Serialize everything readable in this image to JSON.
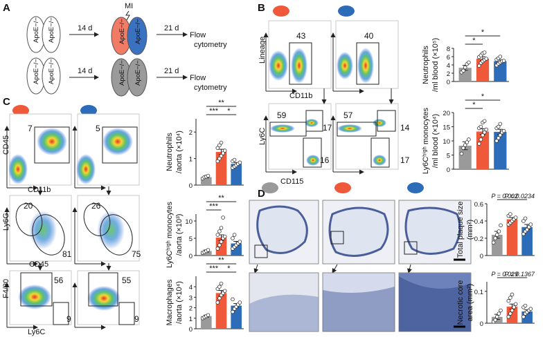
{
  "panel_labels": [
    "A",
    "B",
    "C",
    "D"
  ],
  "panel_a": {
    "genotype": "ApoE−/−",
    "interval_1": "14 d",
    "injury": "MI",
    "interval_2": "21 d",
    "readout": [
      "Flow",
      "cytometry"
    ]
  },
  "flow_b": {
    "top": {
      "y_label": "Lineage",
      "x_label": "CD11b",
      "gates": [
        43,
        40
      ]
    },
    "bottom": {
      "y_label": "Ly6C",
      "x_label": "CD115",
      "gates": [
        [
          59,
          17,
          16
        ],
        [
          57,
          14,
          17
        ]
      ]
    }
  },
  "flow_c": {
    "rows": [
      {
        "y_label": "CD45",
        "x_label": "CD11b",
        "gates": [
          [
            7
          ],
          [
            5
          ]
        ]
      },
      {
        "y_label": "Ly6G",
        "x_label": "CD45",
        "gates": [
          [
            20,
            81
          ],
          [
            26,
            75
          ]
        ]
      },
      {
        "y_label": "F4/80",
        "x_label": "Ly6C",
        "gates": [
          [
            56,
            9
          ],
          [
            55,
            9
          ]
        ]
      }
    ]
  },
  "chart_data": [
    {
      "type": "bar",
      "ylabel": [
        "Neutrophils",
        "/ml blood (×10⁵)"
      ],
      "categories": [
        null,
        null,
        null
      ],
      "colors": [
        "#9a9a9a",
        "#f0583a",
        "#2c6cb8"
      ],
      "values": [
        3.3,
        5.5,
        4.9
      ],
      "errors": [
        0.6,
        0.5,
        0.3
      ],
      "points": [
        [
          2.2,
          2.6,
          3.4,
          4.2,
          4.6
        ],
        [
          3.8,
          4.5,
          4.9,
          5.2,
          5.5,
          5.9,
          6.3,
          6.8,
          7.0
        ],
        [
          3.9,
          4.3,
          4.6,
          4.9,
          5.0,
          5.3,
          5.6,
          6.0
        ]
      ],
      "ylim": [
        0,
        8
      ],
      "yticks": [
        0,
        2,
        4,
        6,
        8
      ],
      "comparisons": [
        {
          "groups": [
            0,
            1
          ],
          "label": "*"
        },
        {
          "groups": [
            0,
            2
          ],
          "label": "*"
        }
      ]
    },
    {
      "type": "bar",
      "ylabel": [
        "Ly6Cʰⁱᵍʰ monocytes",
        "/ml blood (×10⁴)"
      ],
      "categories": [
        null,
        null,
        null
      ],
      "colors": [
        "#9a9a9a",
        "#f0583a",
        "#2c6cb8"
      ],
      "values": [
        8.3,
        13.3,
        13.2
      ],
      "errors": [
        1.4,
        1.0,
        0.9
      ],
      "points": [
        [
          5.5,
          7.5,
          8.5,
          9.5,
          10.5
        ],
        [
          9,
          10.5,
          12,
          13,
          14,
          14.5,
          15,
          16.5,
          17
        ],
        [
          10,
          11,
          12,
          13,
          13.5,
          14.5,
          15,
          16
        ]
      ],
      "ylim": [
        0,
        20
      ],
      "yticks": [
        0,
        5,
        10,
        15,
        20
      ],
      "comparisons": [
        {
          "groups": [
            0,
            1
          ],
          "label": "*"
        },
        {
          "groups": [
            0,
            2
          ],
          "label": "*"
        }
      ]
    },
    {
      "type": "bar",
      "ylabel": [
        "Neutrophils",
        "/aorta (×10⁴)"
      ],
      "categories": [
        null,
        null,
        null
      ],
      "colors": [
        "#9a9a9a",
        "#f0583a",
        "#2c6cb8"
      ],
      "values": [
        0.3,
        1.25,
        0.8
      ],
      "errors": [
        0.03,
        0.1,
        0.05
      ],
      "points": [
        [
          0.25,
          0.3,
          0.32,
          0.35
        ],
        [
          0.9,
          1.0,
          1.1,
          1.2,
          1.3,
          1.4,
          1.5,
          1.6
        ],
        [
          0.65,
          0.7,
          0.75,
          0.8,
          0.85,
          0.9,
          0.95
        ]
      ],
      "ylim": [
        0,
        2.5
      ],
      "yticks": [
        0,
        1,
        2
      ],
      "comparisons": [
        {
          "groups": [
            0,
            1
          ],
          "label": "***"
        },
        {
          "groups": [
            1,
            2
          ],
          "label": "*"
        },
        {
          "groups": [
            0,
            2
          ],
          "label": "**"
        }
      ]
    },
    {
      "type": "bar",
      "ylabel": [
        "Ly6Cʰⁱᵍʰ monocytes",
        "/aorta (×10³)"
      ],
      "categories": [
        null,
        null,
        null
      ],
      "colors": [
        "#9a9a9a",
        "#f0583a",
        "#2c6cb8"
      ],
      "values": [
        1.3,
        5.2,
        3.5
      ],
      "errors": [
        0.3,
        0.8,
        0.6
      ],
      "points": [
        [
          0.8,
          1.0,
          1.3,
          1.6
        ],
        [
          2,
          3,
          4,
          5,
          5.5,
          6,
          7,
          8,
          11
        ],
        [
          2,
          2.5,
          3,
          3.5,
          4,
          5,
          6
        ]
      ],
      "ylim": [
        0,
        12
      ],
      "yticks": [
        0,
        5,
        10
      ],
      "comparisons": [
        {
          "groups": [
            0,
            1
          ],
          "label": "***"
        },
        {
          "groups": [
            0,
            2
          ],
          "label": "**"
        }
      ]
    },
    {
      "type": "bar",
      "ylabel": [
        "Macrophages",
        "/aorta (×10⁴)"
      ],
      "categories": [
        null,
        null,
        null
      ],
      "colors": [
        "#9a9a9a",
        "#f0583a",
        "#2c6cb8"
      ],
      "values": [
        1.2,
        3.4,
        2.2
      ],
      "errors": [
        0.1,
        0.25,
        0.2
      ],
      "points": [
        [
          1.0,
          1.1,
          1.2,
          1.3
        ],
        [
          2.5,
          2.9,
          3.2,
          3.4,
          3.6,
          3.8,
          4.0,
          4.3
        ],
        [
          1.6,
          1.9,
          2.1,
          2.3,
          2.5,
          2.8
        ]
      ],
      "ylim": [
        0,
        5
      ],
      "yticks": [
        0,
        1,
        2,
        3,
        4
      ],
      "comparisons": [
        {
          "groups": [
            0,
            1
          ],
          "label": "***"
        },
        {
          "groups": [
            1,
            2
          ],
          "label": "*"
        },
        {
          "groups": [
            0,
            2
          ],
          "label": "**"
        }
      ]
    },
    {
      "type": "bar",
      "ylabel": [
        "Total plaque size",
        "(mm²)"
      ],
      "categories": [
        null,
        null,
        null
      ],
      "colors": [
        "#9a9a9a",
        "#f0583a",
        "#2c6cb8"
      ],
      "values": [
        0.24,
        0.42,
        0.33
      ],
      "errors": [
        0.04,
        0.02,
        0.03
      ],
      "points": [
        [
          0.15,
          0.2,
          0.24,
          0.28,
          0.35
        ],
        [
          0.36,
          0.38,
          0.4,
          0.42,
          0.44,
          0.46,
          0.48
        ],
        [
          0.25,
          0.28,
          0.3,
          0.33,
          0.36,
          0.4,
          0.43
        ]
      ],
      "ylim": [
        0,
        0.6
      ],
      "yticks": [
        0,
        0.2,
        0.4,
        0.6
      ],
      "comparisons": [
        {
          "groups": [
            0,
            1
          ],
          "label": "P = 0.002"
        },
        {
          "groups": [
            1,
            2
          ],
          "label": "P = 0.0234"
        }
      ]
    },
    {
      "type": "bar",
      "ylabel": [
        "Necrotic core",
        "area (mm²)"
      ],
      "categories": [
        null,
        null,
        null
      ],
      "colors": [
        "#9a9a9a",
        "#f0583a",
        "#2c6cb8"
      ],
      "values": [
        0.02,
        0.052,
        0.037
      ],
      "errors": [
        0.008,
        0.008,
        0.005
      ],
      "points": [
        [
          0.005,
          0.01,
          0.02,
          0.03,
          0.04
        ],
        [
          0.02,
          0.03,
          0.04,
          0.05,
          0.06,
          0.07,
          0.08,
          0.09
        ],
        [
          0.02,
          0.03,
          0.035,
          0.04,
          0.045,
          0.05,
          0.055
        ]
      ],
      "ylim": [
        0,
        0.13
      ],
      "yticks": [
        0,
        0.1
      ],
      "comparisons": [
        {
          "groups": [
            0,
            1
          ],
          "label": "P = 0.029"
        },
        {
          "groups": [
            1,
            2
          ],
          "label": "P = 0.1367"
        }
      ]
    }
  ]
}
